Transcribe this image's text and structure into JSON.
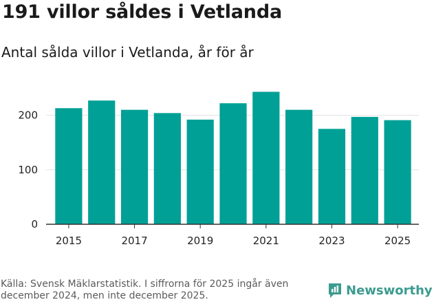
{
  "title": "191 villor såldes i Vetlanda",
  "subtitle": "Antal sålda villor i Vetlanda, år för år",
  "source": "Källa: Svensk Mäklarstatistik. I siffrorna för 2025 ingår även december 2024, men inte december 2025.",
  "brand": {
    "name": "Newsworthy",
    "icon": "newsworthy-logo-icon",
    "color": "#3c9b8f"
  },
  "colors": {
    "bar": "#00a096",
    "grid": "#e3e3e3",
    "axis": "#333333"
  },
  "chart_data": {
    "type": "bar",
    "title": "Antal sålda villor i Vetlanda, år för år",
    "xlabel": "",
    "ylabel": "",
    "categories": [
      "2015",
      "2016",
      "2017",
      "2018",
      "2019",
      "2020",
      "2021",
      "2022",
      "2023",
      "2024",
      "2025"
    ],
    "values": [
      213,
      227,
      210,
      204,
      192,
      222,
      243,
      210,
      175,
      197,
      191
    ],
    "ylim": [
      0,
      260
    ],
    "yticks": [
      0,
      100,
      200
    ],
    "xticks": [
      "2015",
      "2017",
      "2019",
      "2021",
      "2023",
      "2025"
    ],
    "grid": true,
    "legend": "none"
  }
}
